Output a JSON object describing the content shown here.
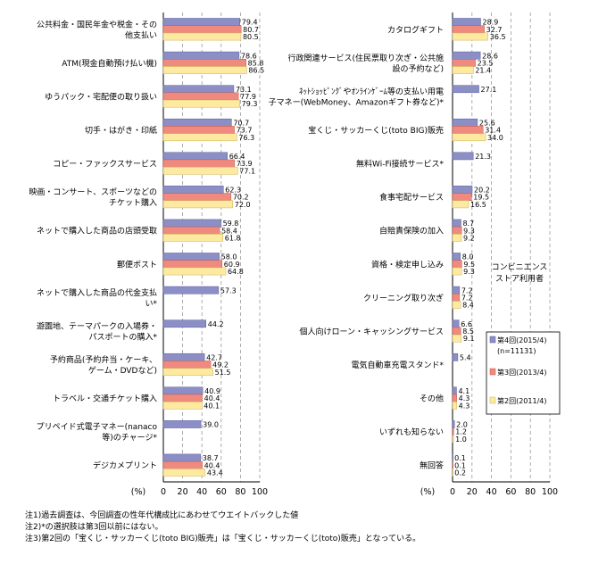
{
  "chart_data": [
    {
      "type": "bar",
      "orientation": "horizontal",
      "xlim": [
        0,
        100
      ],
      "xticks": [
        "0",
        "20",
        "40",
        "60",
        "80",
        "100"
      ],
      "xlabel": "(%)",
      "grid": true,
      "categories": [
        [
          "公共料金・国民年金や税金・その",
          "他支払い"
        ],
        [
          "ATM(現金自動預け払い機)"
        ],
        [
          "ゆうパック・宅配便の取り扱い"
        ],
        [
          "切手・はがき・印紙"
        ],
        [
          "コピー・ファックスサービス"
        ],
        [
          "映画・コンサート、スポーツなどの",
          "チケット購入"
        ],
        [
          "ネットで購入した商品の店頭受取"
        ],
        [
          "郵便ポスト"
        ],
        [
          "ネットで購入した商品の代金支払",
          "い*"
        ],
        [
          "遊園地、テーマパークの入場券・",
          "パスポートの購入*"
        ],
        [
          "予約商品(予約弁当・ケーキ、",
          "ゲーム・DVDなど)"
        ],
        [
          "トラベル・交通チケット購入"
        ],
        [
          "プリペイド式電子マネー(nanaco",
          "等)のチャージ*"
        ],
        [
          "デジカメプリント"
        ]
      ],
      "series": [
        {
          "name": "第4回(2015/4)",
          "values": [
            79.4,
            78.6,
            73.1,
            70.7,
            66.4,
            62.3,
            59.8,
            58.0,
            57.3,
            44.2,
            42.7,
            40.9,
            39.0,
            38.7
          ]
        },
        {
          "name": "第3回(2013/4)",
          "values": [
            80.7,
            85.8,
            77.9,
            73.7,
            73.9,
            70.2,
            58.4,
            60.9,
            null,
            null,
            49.2,
            40.4,
            null,
            40.4
          ]
        },
        {
          "name": "第2回(2011/4)",
          "values": [
            80.5,
            86.5,
            79.3,
            76.3,
            77.1,
            72.0,
            61.8,
            64.8,
            null,
            null,
            51.5,
            40.1,
            null,
            43.4
          ]
        }
      ]
    },
    {
      "type": "bar",
      "orientation": "horizontal",
      "xlim": [
        0,
        100
      ],
      "xticks": [
        "0",
        "20",
        "40",
        "60",
        "80",
        "100"
      ],
      "xlabel": "(%)",
      "grid": true,
      "categories": [
        [
          "カタログギフト"
        ],
        [
          "行政関連サービス(住民票取り次ぎ・公共施",
          "設の予約など)"
        ],
        [
          "ﾈｯﾄｼｮｯﾋﾟﾝｸﾞやｵﾝﾗｲﾝｹﾞｰﾑ等の支払い用電",
          "子マネー(WebMoney、Amazonギフト券など)*"
        ],
        [
          "宝くじ・サッカーくじ(toto BIG)販売"
        ],
        [
          "無料Wi-Fi接続サービス*"
        ],
        [
          "食事宅配サービス"
        ],
        [
          "自賠責保険の加入"
        ],
        [
          "資格・検定申し込み"
        ],
        [
          "クリーニング取り次ぎ"
        ],
        [
          "個人向けローン・キャッシングサービス"
        ],
        [
          "電気自動車充電スタンド*"
        ],
        [
          "その他"
        ],
        [
          "いずれも知らない"
        ],
        [
          "無回答"
        ]
      ],
      "series": [
        {
          "name": "第4回(2015/4)",
          "values": [
            28.9,
            28.6,
            27.1,
            25.6,
            21.3,
            20.2,
            8.7,
            8.0,
            7.2,
            6.6,
            5.4,
            4.1,
            2.0,
            0.1
          ]
        },
        {
          "name": "第3回(2013/4)",
          "values": [
            32.7,
            23.5,
            null,
            31.4,
            null,
            19.5,
            9.3,
            9.5,
            7.2,
            8.5,
            null,
            4.3,
            1.2,
            0.1
          ]
        },
        {
          "name": "第2回(2011/4)",
          "values": [
            36.5,
            21.4,
            null,
            34.0,
            null,
            16.5,
            9.2,
            9.3,
            8.4,
            9.1,
            null,
            4.3,
            1.0,
            0.2
          ]
        }
      ]
    }
  ],
  "legend": {
    "title": [
      "コンビニエンス",
      "ストア利用者"
    ],
    "entries": [
      {
        "label": "第4回(2015/4)",
        "sub": "(n=11131)"
      },
      {
        "label": "第3回(2013/4)",
        "sub": ""
      },
      {
        "label": "第2回(2011/4)",
        "sub": ""
      }
    ]
  },
  "notes": [
    "注1)過去調査は、今回調査の性年代構成比にあわせてウエイトバックした値",
    "注2)*の選択肢は第3回以前にはない。",
    "注3)第2回の「宝くじ・サッカーくじ(toto BIG)販売」は「宝くじ・サッカーくじ(toto)販売」となっている。"
  ],
  "colors": {
    "series": [
      "#8b8fc6",
      "#f08a7e",
      "#fde9a0"
    ],
    "series_border": [
      "#5a5e9a",
      "#c55a4f",
      "#c9b45c"
    ],
    "grid": "#999999",
    "axis": "#000000"
  }
}
